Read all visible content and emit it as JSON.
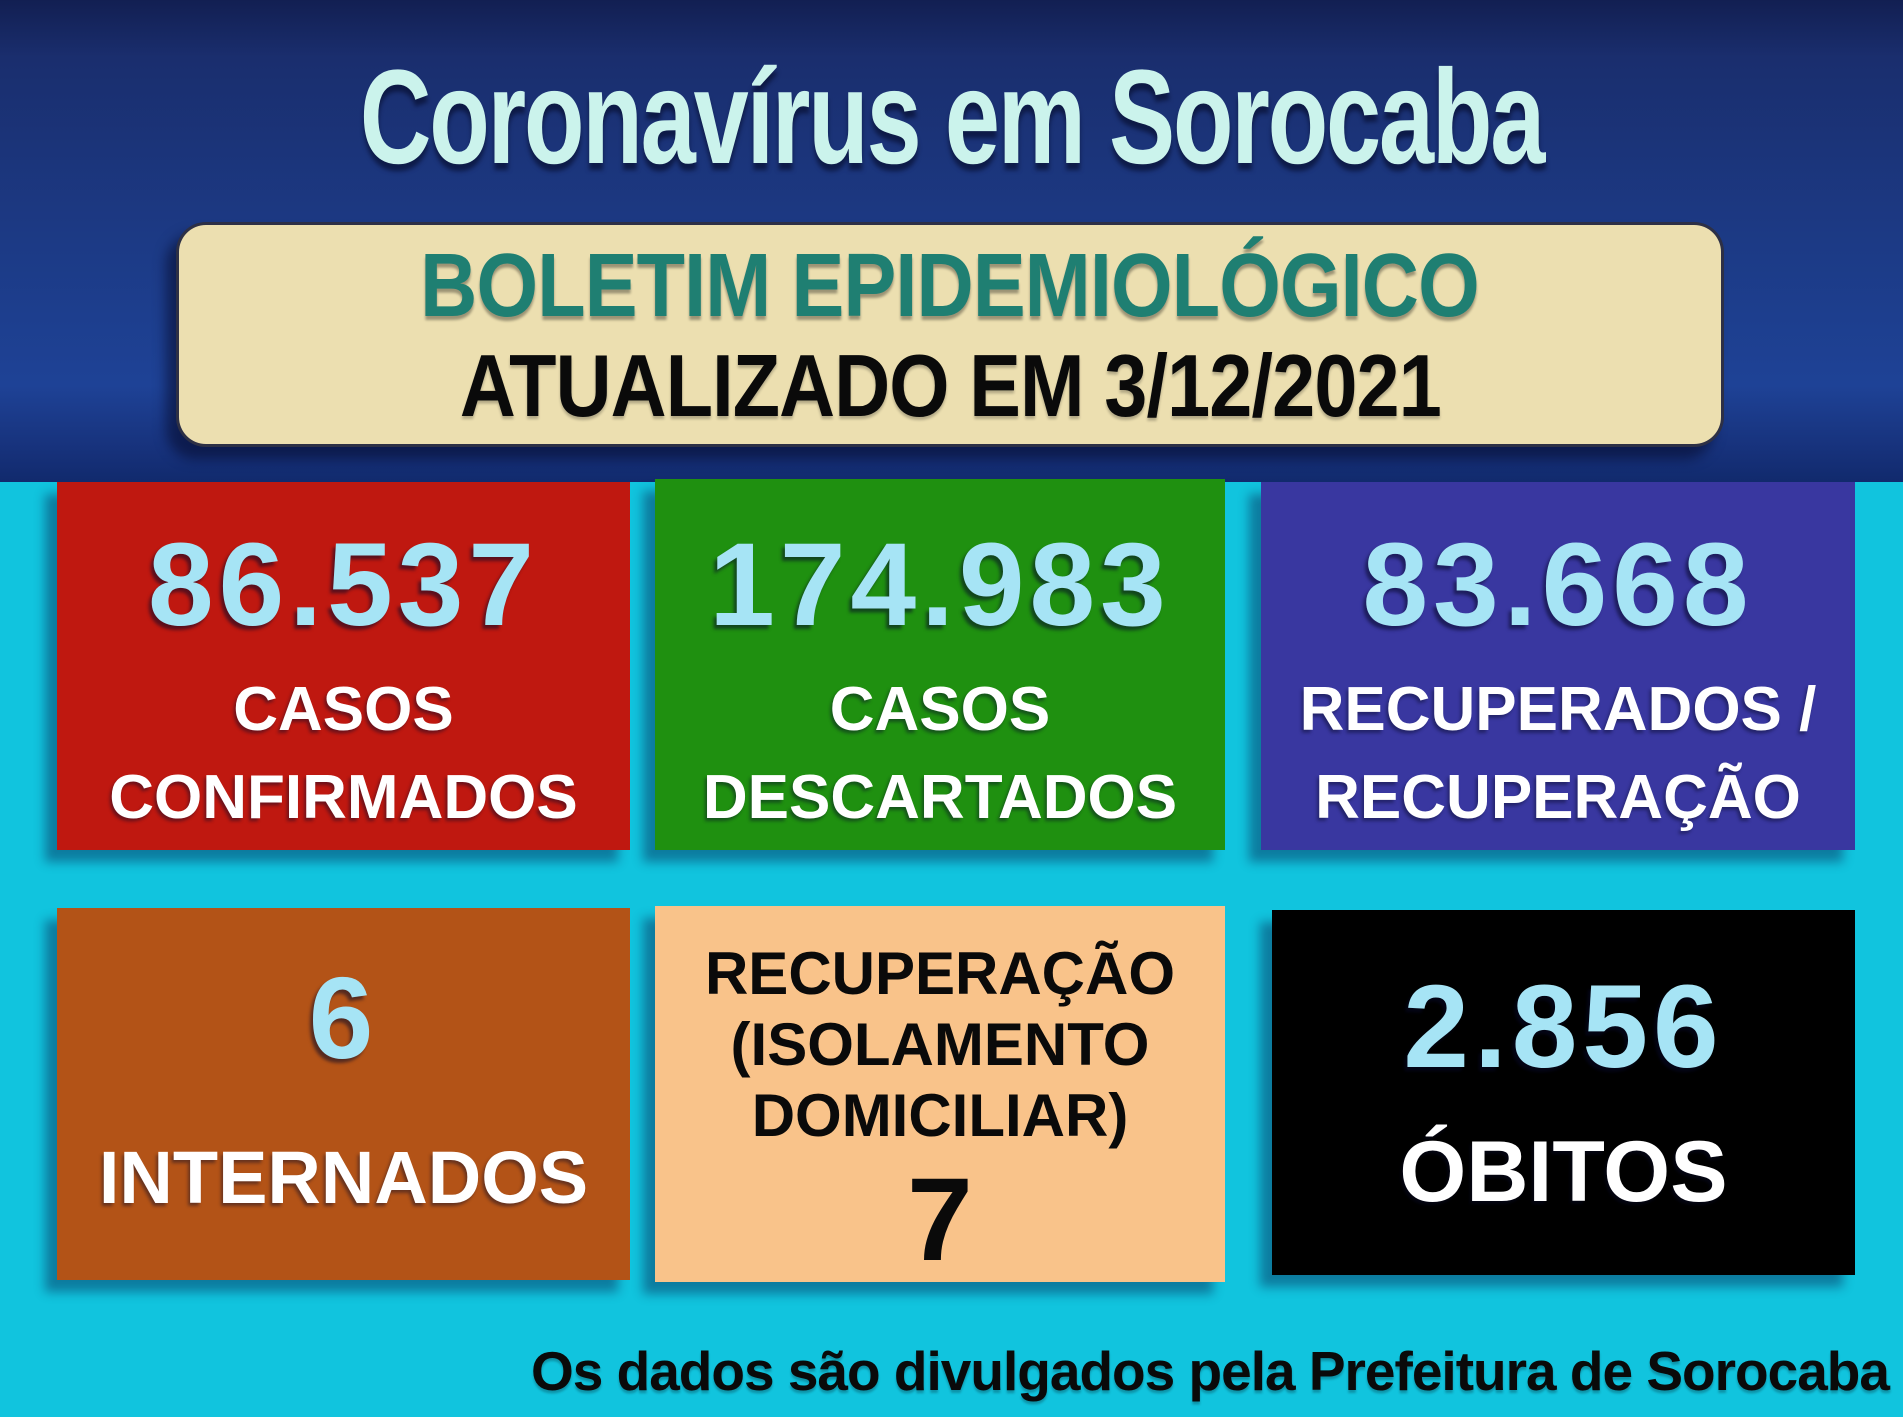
{
  "header": {
    "title": "Coronavírus em Sorocaba"
  },
  "bulletin": {
    "title": "BOLETIM EPIDEMIOLÓGICO",
    "updated": "ATUALIZADO EM 3/12/2021"
  },
  "cards": {
    "confirmados": {
      "value": "86.537",
      "line1": "CASOS",
      "line2": "CONFIRMADOS",
      "bg": "#bf1810"
    },
    "descartados": {
      "value": "174.983",
      "line1": "CASOS",
      "line2": "DESCARTADOS",
      "bg": "#1f9010"
    },
    "recuperados": {
      "value": "83.668",
      "line1": "RECUPERADOS /",
      "line2": "RECUPERAÇÃO",
      "bg": "#3937a0"
    },
    "internados": {
      "value": "6",
      "line1": "INTERNADOS",
      "bg": "#b35317"
    },
    "isolamento": {
      "line1": "RECUPERAÇÃO",
      "line2": "(ISOLAMENTO",
      "line3": "DOMICILIAR)",
      "value": "7",
      "bg": "#f9c38a"
    },
    "obitos": {
      "value": "2.856",
      "line1": "ÓBITOS",
      "bg": "#000000"
    }
  },
  "footer": {
    "note": "Os dados são divulgados pela Prefeitura de Sorocaba"
  },
  "colors": {
    "background_top_navy": "#1c3a85",
    "background_bottom_cyan": "#11c4de",
    "panel_beige": "#ecdfb0",
    "bulletin_title_teal": "#1f7f72",
    "stat_number_blue": "#a6e4f5",
    "stat_label_white": "#ffffff",
    "title_mint": "#cbf3ec"
  }
}
